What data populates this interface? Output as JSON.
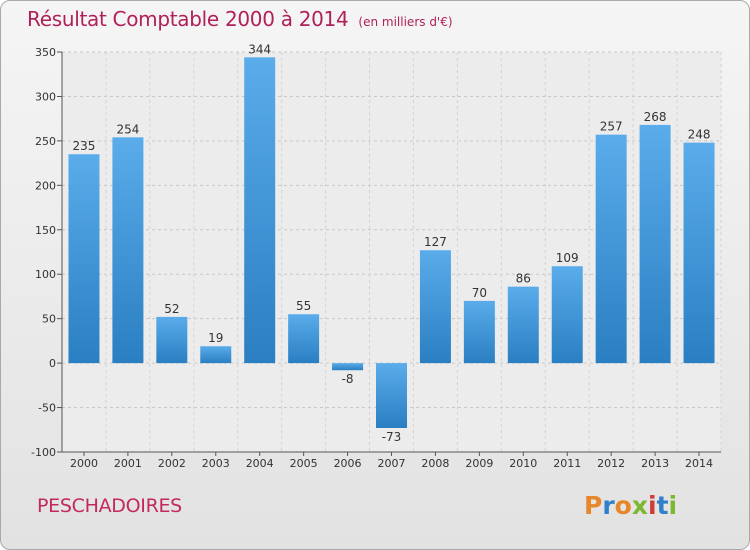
{
  "chart_data": {
    "type": "bar",
    "title": "Résultat Comptable 2000 à 2014",
    "unit": "(en milliers d'€)",
    "categories": [
      "2000",
      "2001",
      "2002",
      "2003",
      "2004",
      "2005",
      "2006",
      "2007",
      "2008",
      "2009",
      "2010",
      "2011",
      "2012",
      "2013",
      "2014"
    ],
    "values": [
      235,
      254,
      52,
      19,
      344,
      55,
      -8,
      -73,
      127,
      70,
      86,
      109,
      257,
      268,
      248
    ],
    "data_labels": [
      "235",
      "254",
      "52",
      "19",
      "344",
      "55",
      "-8",
      "-73",
      "127",
      "70",
      "86",
      "109",
      "257",
      "268",
      "248"
    ],
    "ylim": [
      -100,
      350
    ],
    "yticks": [
      -100,
      -50,
      0,
      50,
      100,
      150,
      200,
      250,
      300,
      350
    ],
    "ytick_labels": [
      "-100",
      "-50",
      "0",
      "50",
      "100",
      "150",
      "200",
      "250",
      "300",
      "350"
    ],
    "grid": true,
    "bar_color": "#3e97d8"
  },
  "footer": {
    "commune": "PESCHADOIRES",
    "logo_text": "Proxiti",
    "logo_colors": [
      "#e8862a",
      "#2f7fc9",
      "#e8862a",
      "#7cb82f",
      "#d13b3b",
      "#2f7fc9",
      "#7cb82f"
    ]
  }
}
